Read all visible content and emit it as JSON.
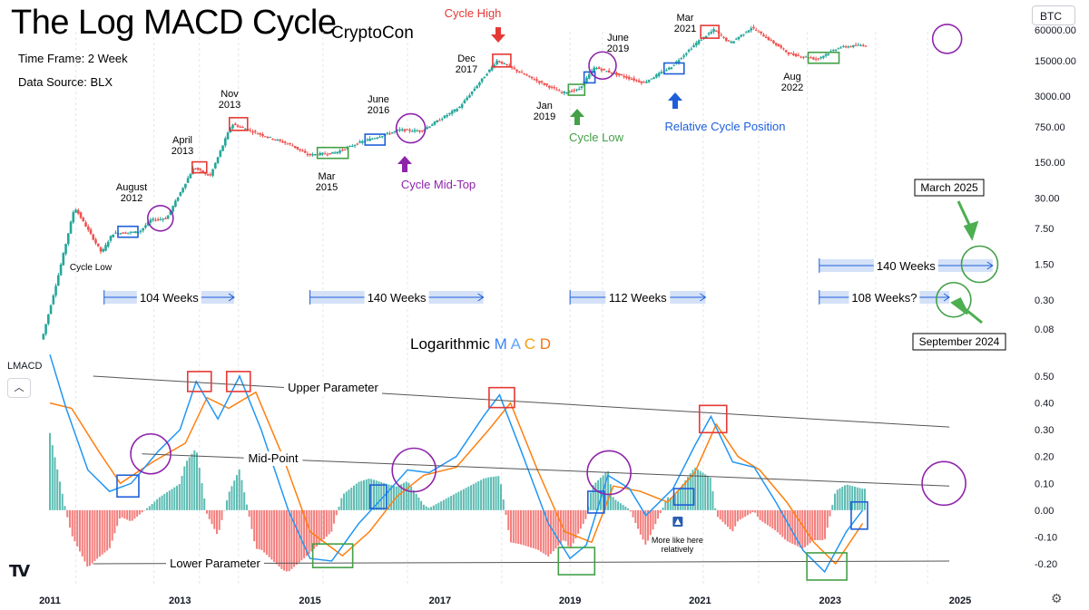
{
  "header": {
    "title": "The Log MACD Cycle",
    "author": "CryptoCon",
    "time_frame": "Time Frame: 2 Week",
    "data_source": "Data Source: BLX",
    "symbol": "BTC"
  },
  "indicator_pane": {
    "label": "LMACD",
    "collapse_icon": "chevron-up-icon",
    "title_word": "Logarithmic",
    "title_letters": [
      "M",
      "A",
      "C",
      "D"
    ],
    "title_letter_colors": [
      "#3b82f6",
      "#60a5fa",
      "#f59e0b",
      "#f97316"
    ]
  },
  "footer": {
    "logo_text": "TV",
    "settings_icon": "gear-icon"
  },
  "colors": {
    "up_candle": "#26a69a",
    "down_candle": "#ef5350",
    "macd_line": "#2196f3",
    "signal_line": "#ff7f0e",
    "hist_up": "#26a69a",
    "hist_down": "#ef5350",
    "high_box": "#e53935",
    "low_box": "#43a047",
    "position_box": "#1e5fd9",
    "mid_circle": "#8e24aa",
    "range_fill": "#c9d9f5"
  },
  "chart_data": [
    {
      "type": "candlestick",
      "title": "BTC price (log scale)",
      "y_scale": "log",
      "y_ticks": [
        "60000.00",
        "15000.00",
        "3000.00",
        "750.00",
        "150.00",
        "30.00",
        "7.50",
        "1.50",
        "0.30",
        "0.08"
      ],
      "x_ticks": [
        "2011",
        "2013",
        "2015",
        "2017",
        "2019",
        "2021",
        "2023",
        "2025"
      ],
      "price_path": [
        {
          "x": "2010-12",
          "y": 0.05
        },
        {
          "x": "2011-03",
          "y": 0.9
        },
        {
          "x": "2011-06",
          "y": 20
        },
        {
          "x": "2011-11",
          "y": 2.5
        },
        {
          "x": "2012-01",
          "y": 6
        },
        {
          "x": "2012-06",
          "y": 6.5
        },
        {
          "x": "2012-08",
          "y": 11
        },
        {
          "x": "2012-11",
          "y": 12
        },
        {
          "x": "2013-04",
          "y": 120
        },
        {
          "x": "2013-07",
          "y": 80
        },
        {
          "x": "2013-11",
          "y": 850
        },
        {
          "x": "2014-05",
          "y": 500
        },
        {
          "x": "2014-10",
          "y": 330
        },
        {
          "x": "2015-01",
          "y": 210
        },
        {
          "x": "2015-06",
          "y": 230
        },
        {
          "x": "2015-11",
          "y": 380
        },
        {
          "x": "2016-06",
          "y": 650
        },
        {
          "x": "2016-10",
          "y": 620
        },
        {
          "x": "2017-05",
          "y": 1800
        },
        {
          "x": "2017-12",
          "y": 15000
        },
        {
          "x": "2018-06",
          "y": 7000
        },
        {
          "x": "2018-12",
          "y": 3500
        },
        {
          "x": "2019-03",
          "y": 4000
        },
        {
          "x": "2019-06",
          "y": 11000
        },
        {
          "x": "2020-03",
          "y": 5500
        },
        {
          "x": "2020-08",
          "y": 11000
        },
        {
          "x": "2021-01",
          "y": 35000
        },
        {
          "x": "2021-04",
          "y": 60000
        },
        {
          "x": "2021-07",
          "y": 33000
        },
        {
          "x": "2021-11",
          "y": 67000
        },
        {
          "x": "2022-06",
          "y": 20000
        },
        {
          "x": "2022-11",
          "y": 16000
        },
        {
          "x": "2023-03",
          "y": 27000
        },
        {
          "x": "2023-07",
          "y": 30000
        }
      ],
      "annotations": [
        {
          "text": "Cycle High",
          "color": "#e53935",
          "arrow": "down"
        },
        {
          "text": "Cycle Low",
          "color": "#43a047",
          "arrow": "up"
        },
        {
          "text": "Cycle Mid-Top",
          "color": "#8e24aa",
          "arrow": "up"
        },
        {
          "text": "Relative Cycle Position",
          "color": "#1e5fd9",
          "arrow": "up"
        },
        {
          "text": "Cycle Low",
          "color": "#000000",
          "arrow": "none"
        }
      ],
      "date_labels": [
        {
          "line1": "August",
          "line2": "2012"
        },
        {
          "line1": "April",
          "line2": "2013"
        },
        {
          "line1": "Nov",
          "line2": "2013"
        },
        {
          "line1": "Mar",
          "line2": "2015"
        },
        {
          "line1": "June",
          "line2": "2016"
        },
        {
          "line1": "Dec",
          "line2": "2017"
        },
        {
          "line1": "Jan",
          "line2": "2019"
        },
        {
          "line1": "June",
          "line2": "2019"
        },
        {
          "line1": "Mar",
          "line2": "2021"
        },
        {
          "line1": "Aug",
          "line2": "2022"
        }
      ],
      "cycle_ranges": [
        {
          "label": "104 Weeks",
          "start": "2011-11",
          "end": "2013-11"
        },
        {
          "label": "140 Weeks",
          "start": "2015-01",
          "end": "2017-09"
        },
        {
          "label": "112 Weeks",
          "start": "2019-01",
          "end": "2021-02"
        },
        {
          "label": "140 Weeks",
          "start": "2022-11",
          "end": "2025-07"
        },
        {
          "label": "108 Weeks?",
          "start": "2022-11",
          "end": "2024-11"
        }
      ],
      "projection_callouts": [
        {
          "text": "March 2025",
          "arrow": "down"
        },
        {
          "text": "September 2024",
          "arrow": "up"
        }
      ]
    },
    {
      "type": "line",
      "title": "Logarithmic MACD",
      "y_ticks": [
        "0.50",
        "0.40",
        "0.30",
        "0.20",
        "0.10",
        "0.00",
        "-0.10",
        "-0.20"
      ],
      "ylim": [
        -0.3,
        0.55
      ],
      "series": [
        {
          "name": "macd",
          "points": [
            {
              "x": "2011-01",
              "y": 0.58
            },
            {
              "x": "2011-04",
              "y": 0.38
            },
            {
              "x": "2011-08",
              "y": 0.15
            },
            {
              "x": "2011-12",
              "y": 0.07
            },
            {
              "x": "2012-04",
              "y": 0.1
            },
            {
              "x": "2012-09",
              "y": 0.22
            },
            {
              "x": "2013-01",
              "y": 0.3
            },
            {
              "x": "2013-04",
              "y": 0.48
            },
            {
              "x": "2013-08",
              "y": 0.34
            },
            {
              "x": "2013-12",
              "y": 0.5
            },
            {
              "x": "2014-04",
              "y": 0.3
            },
            {
              "x": "2014-09",
              "y": 0.0
            },
            {
              "x": "2015-01",
              "y": -0.18
            },
            {
              "x": "2015-05",
              "y": -0.19
            },
            {
              "x": "2015-10",
              "y": -0.05
            },
            {
              "x": "2016-03",
              "y": 0.06
            },
            {
              "x": "2016-07",
              "y": 0.15
            },
            {
              "x": "2016-11",
              "y": 0.14
            },
            {
              "x": "2017-04",
              "y": 0.2
            },
            {
              "x": "2017-09",
              "y": 0.35
            },
            {
              "x": "2017-12",
              "y": 0.43
            },
            {
              "x": "2018-04",
              "y": 0.22
            },
            {
              "x": "2018-09",
              "y": -0.05
            },
            {
              "x": "2019-01",
              "y": -0.18
            },
            {
              "x": "2019-04",
              "y": -0.13
            },
            {
              "x": "2019-08",
              "y": 0.13
            },
            {
              "x": "2019-12",
              "y": 0.08
            },
            {
              "x": "2020-03",
              "y": -0.02
            },
            {
              "x": "2020-08",
              "y": 0.08
            },
            {
              "x": "2020-12",
              "y": 0.24
            },
            {
              "x": "2021-03",
              "y": 0.35
            },
            {
              "x": "2021-07",
              "y": 0.18
            },
            {
              "x": "2021-11",
              "y": 0.16
            },
            {
              "x": "2022-03",
              "y": 0.03
            },
            {
              "x": "2022-08",
              "y": -0.15
            },
            {
              "x": "2022-12",
              "y": -0.23
            },
            {
              "x": "2023-04",
              "y": -0.08
            },
            {
              "x": "2023-07",
              "y": 0.0
            }
          ]
        },
        {
          "name": "signal",
          "points": [
            {
              "x": "2011-01",
              "y": 0.4
            },
            {
              "x": "2011-05",
              "y": 0.38
            },
            {
              "x": "2011-10",
              "y": 0.22
            },
            {
              "x": "2012-02",
              "y": 0.1
            },
            {
              "x": "2012-08",
              "y": 0.18
            },
            {
              "x": "2013-02",
              "y": 0.25
            },
            {
              "x": "2013-06",
              "y": 0.42
            },
            {
              "x": "2013-10",
              "y": 0.38
            },
            {
              "x": "2014-03",
              "y": 0.44
            },
            {
              "x": "2014-08",
              "y": 0.2
            },
            {
              "x": "2015-01",
              "y": -0.08
            },
            {
              "x": "2015-07",
              "y": -0.17
            },
            {
              "x": "2015-12",
              "y": -0.08
            },
            {
              "x": "2016-05",
              "y": 0.05
            },
            {
              "x": "2016-10",
              "y": 0.13
            },
            {
              "x": "2017-04",
              "y": 0.16
            },
            {
              "x": "2017-10",
              "y": 0.3
            },
            {
              "x": "2018-02",
              "y": 0.4
            },
            {
              "x": "2018-07",
              "y": 0.15
            },
            {
              "x": "2018-12",
              "y": -0.08
            },
            {
              "x": "2019-05",
              "y": -0.12
            },
            {
              "x": "2019-09",
              "y": 0.09
            },
            {
              "x": "2020-02",
              "y": 0.07
            },
            {
              "x": "2020-07",
              "y": 0.03
            },
            {
              "x": "2020-12",
              "y": 0.14
            },
            {
              "x": "2021-04",
              "y": 0.32
            },
            {
              "x": "2021-08",
              "y": 0.2
            },
            {
              "x": "2021-12",
              "y": 0.15
            },
            {
              "x": "2022-05",
              "y": 0.03
            },
            {
              "x": "2022-10",
              "y": -0.12
            },
            {
              "x": "2023-02",
              "y": -0.2
            },
            {
              "x": "2023-07",
              "y": -0.05
            }
          ]
        }
      ],
      "reference_lines": [
        {
          "label": "Upper Parameter",
          "from": {
            "x": "2011-09",
            "y": 0.5
          },
          "to": {
            "x": "2024-11",
            "y": 0.31
          }
        },
        {
          "label": "Mid-Point",
          "from": {
            "x": "2012-06",
            "y": 0.21
          },
          "to": {
            "x": "2024-11",
            "y": 0.09
          }
        },
        {
          "label": "Lower Parameter",
          "from": {
            "x": "2011-09",
            "y": -0.2
          },
          "to": {
            "x": "2024-11",
            "y": -0.19
          }
        }
      ],
      "note": "More like here relatively"
    }
  ]
}
